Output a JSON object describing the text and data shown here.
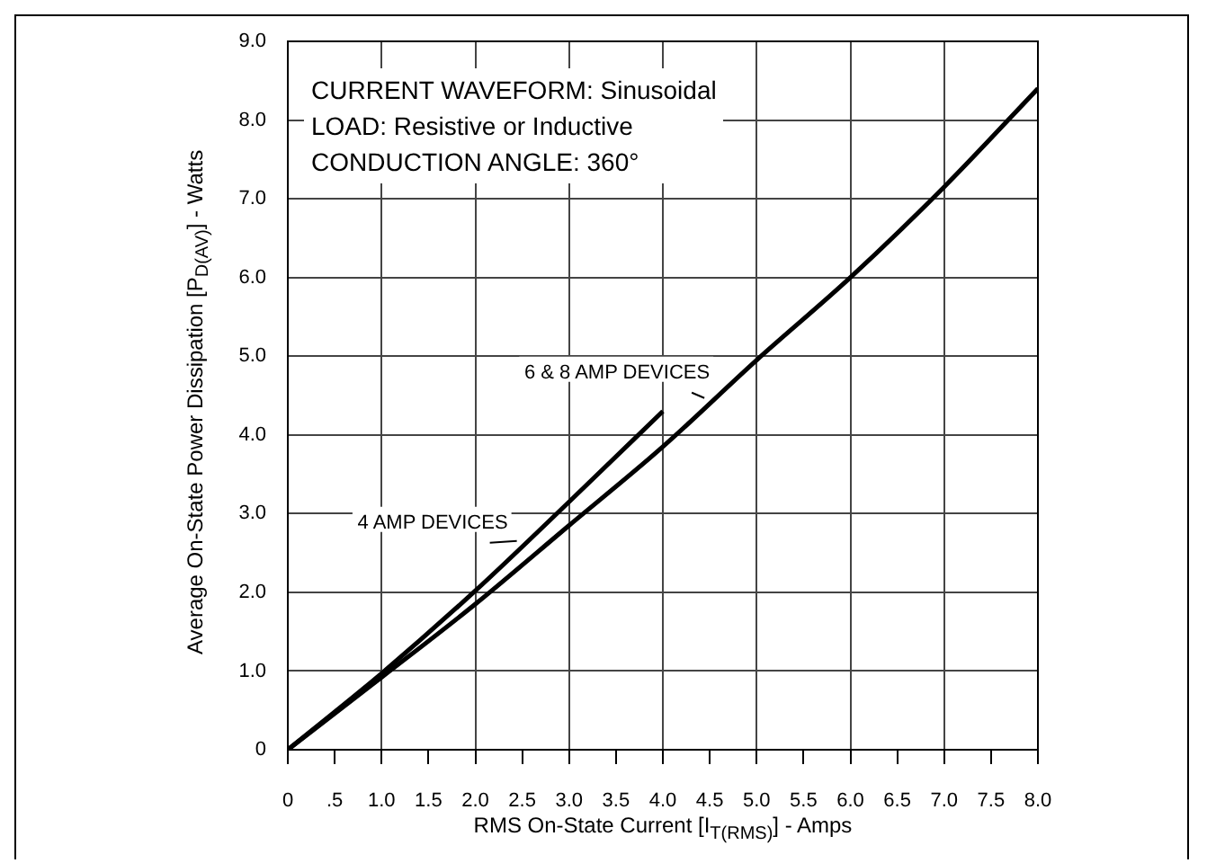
{
  "chart_data": {
    "type": "line",
    "xlabel": "RMS On-State Current [I$_{T(RMS)}$] - Amps",
    "ylabel": "Average On-State Power Dissipation [P$_{D(AV)}$] - Watts",
    "annotations": [
      "CURRENT WAVEFORM: Sinusoidal",
      "LOAD: Resistive or Inductive",
      "CONDUCTION ANGLE: 360°"
    ],
    "series": [
      {
        "name": "6 & 8 AMP DEVICES",
        "color": "#000000",
        "x": [
          0,
          1,
          2,
          3,
          4,
          5,
          6,
          7,
          8
        ],
        "values": [
          0,
          0.92,
          1.85,
          2.85,
          3.85,
          4.95,
          6.0,
          7.15,
          8.4
        ]
      },
      {
        "name": "4 AMP DEVICES",
        "color": "#000000",
        "x": [
          0,
          1,
          2,
          3,
          4
        ],
        "values": [
          0,
          0.97,
          2.02,
          3.15,
          4.3
        ]
      }
    ],
    "xlim": [
      0,
      8
    ],
    "ylim": [
      0,
      9
    ],
    "xticks": [
      0,
      {
        "value": 0.5,
        "label": ".5"
      },
      {
        "value": 1,
        "label": "1.0"
      },
      {
        "value": 1.5,
        "label": "1.5"
      },
      {
        "value": 2,
        "label": "2.0"
      },
      {
        "value": 2.5,
        "label": "2.5"
      },
      {
        "value": 3,
        "label": "3.0"
      },
      {
        "value": 3.5,
        "label": "3.5"
      },
      {
        "value": 4,
        "label": "4.0"
      },
      {
        "value": 4.5,
        "label": "4.5"
      },
      {
        "value": 5,
        "label": "5.0"
      },
      {
        "value": 5.5,
        "label": "5.5"
      },
      {
        "value": 6,
        "label": "6.0"
      },
      {
        "value": 6.5,
        "label": "6.5"
      },
      {
        "value": 7,
        "label": "7.0"
      },
      {
        "value": 7.5,
        "label": "7.5"
      },
      {
        "value": 8,
        "label": "8.0"
      }
    ],
    "yticks": [
      0,
      {
        "value": 1,
        "label": "1.0"
      },
      {
        "value": 2,
        "label": "2.0"
      },
      {
        "value": 3,
        "label": "3.0"
      },
      {
        "value": 4,
        "label": "4.0"
      },
      {
        "value": 5,
        "label": "5.0"
      },
      {
        "value": 6,
        "label": "6.0"
      },
      {
        "value": 7,
        "label": "7.0"
      },
      {
        "value": 8,
        "label": "8.0"
      },
      {
        "value": 9,
        "label": "9.0"
      }
    ],
    "grid": true,
    "legend": false,
    "marker": "none",
    "line_style": "solid"
  }
}
